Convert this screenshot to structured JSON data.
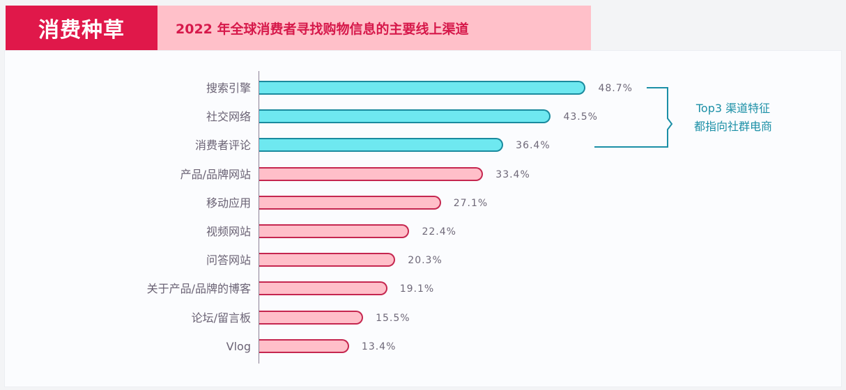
{
  "header": {
    "tag": "消费种草",
    "title": "2022 年全球消费者寻找购物信息的主要线上渠道"
  },
  "callout": {
    "line1": "Top3 渠道特征",
    "line2": "都指向社群电商"
  },
  "colors": {
    "tag_bg": "#e0184a",
    "header_strip": "#ffc0c9",
    "top3_bar": "#6ee8f0",
    "top3_border": "#1a8a9e",
    "other_bar": "#ffbfc9",
    "other_border": "#c5264f",
    "callout_text": "#1b8fa6"
  },
  "chart_data": {
    "type": "bar",
    "orientation": "horizontal",
    "title": "2022 年全球消费者寻找购物信息的主要线上渠道",
    "categories": [
      "搜索引擎",
      "社交网络",
      "消费者评论",
      "产品/品牌网站",
      "移动应用",
      "视频网站",
      "问答网站",
      "关于产品/品牌的博客",
      "论坛/留言板",
      "Vlog"
    ],
    "values": [
      48.7,
      43.5,
      36.4,
      33.4,
      27.1,
      22.4,
      20.3,
      19.1,
      15.5,
      13.4
    ],
    "value_labels": [
      "48.7%",
      "43.5%",
      "36.4%",
      "33.4%",
      "27.1%",
      "22.4%",
      "20.3%",
      "19.1%",
      "15.5%",
      "13.4%"
    ],
    "highlight_top_n": 3,
    "annotation": "Top3 渠道特征 都指向社群电商",
    "xlabel": "",
    "ylabel": "",
    "grid": false,
    "legend": null
  },
  "rows": [
    {
      "label": "搜索引擎",
      "value": "48.7%"
    },
    {
      "label": "社交网络",
      "value": "43.5%"
    },
    {
      "label": "消费者评论",
      "value": "36.4%"
    },
    {
      "label": "产品/品牌网站",
      "value": "33.4%"
    },
    {
      "label": "移动应用",
      "value": "27.1%"
    },
    {
      "label": "视频网站",
      "value": "22.4%"
    },
    {
      "label": "问答网站",
      "value": "20.3%"
    },
    {
      "label": "关于产品/品牌的博客",
      "value": "19.1%"
    },
    {
      "label": "论坛/留言板",
      "value": "15.5%"
    },
    {
      "label": "Vlog",
      "value": "13.4%"
    }
  ]
}
